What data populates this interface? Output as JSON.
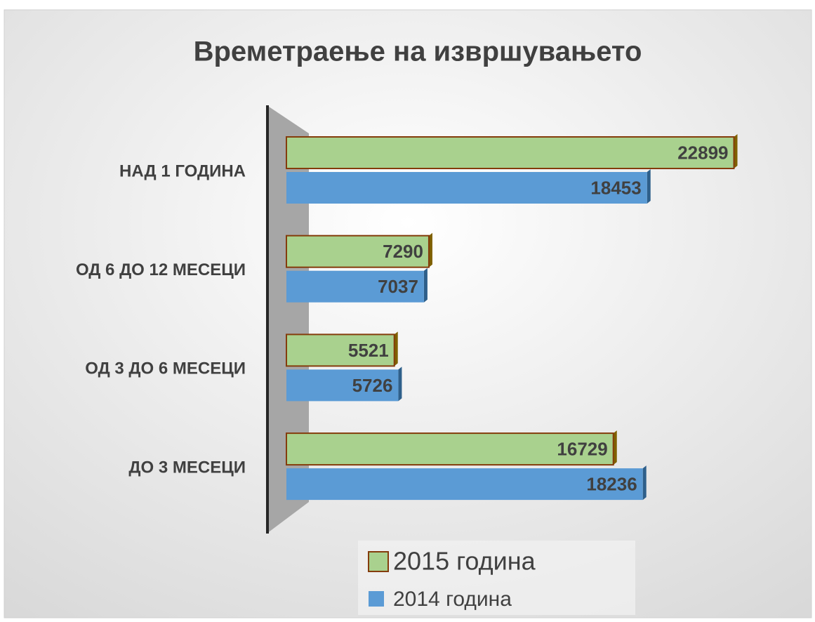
{
  "chart_data": {
    "type": "bar",
    "orientation": "horizontal",
    "title": "Времетраење на извршувањето",
    "categories": [
      "НАД 1 ГОДИНА",
      "ОД 6 ДО 12 МЕСЕЦИ",
      "ОД 3 ДО 6 МЕСЕЦИ",
      "ДО 3 МЕСЕЦИ"
    ],
    "series": [
      {
        "name": "2015 година",
        "color": "#a9d18e",
        "values": [
          22899,
          7290,
          5521,
          16729
        ]
      },
      {
        "name": "2014 година",
        "color": "#5b9bd5",
        "values": [
          18453,
          7037,
          5726,
          18236
        ]
      }
    ],
    "xlim": [
      0,
      25000
    ]
  }
}
